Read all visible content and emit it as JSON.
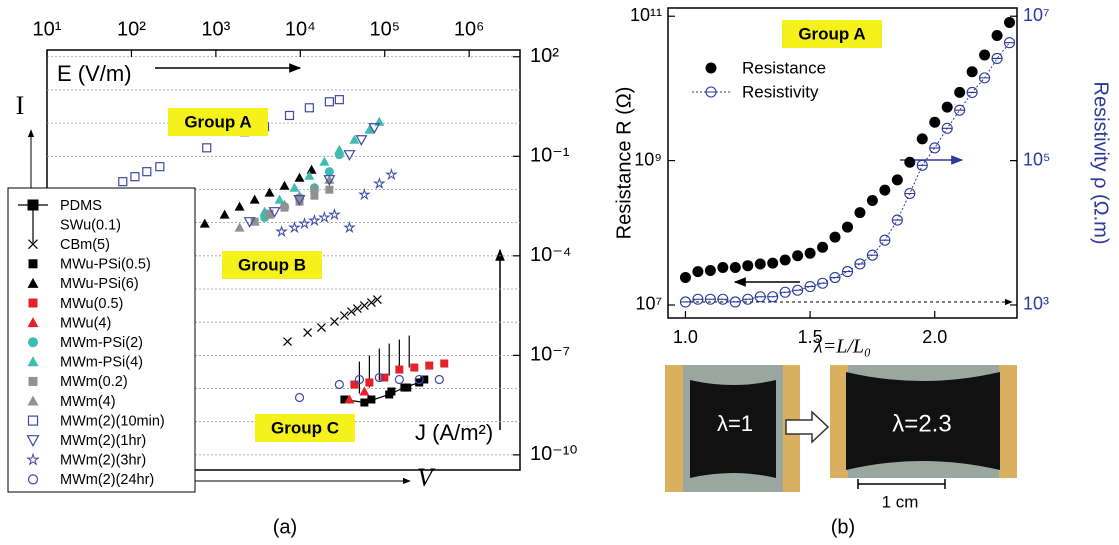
{
  "chart_data": [
    {
      "type": "scatter",
      "x_label": "E (V/m)",
      "y_label": "J (A/m²)",
      "xscale": "log",
      "yscale": "log",
      "xlim": [
        10,
        4000000
      ],
      "ylim": [
        3.5e-11,
        160
      ],
      "xticks": [
        {
          "value": 10,
          "label": "10¹"
        },
        {
          "value": 100,
          "label": "10²"
        },
        {
          "value": 1000,
          "label": "10³"
        },
        {
          "value": 10000,
          "label": "10⁴"
        },
        {
          "value": 100000,
          "label": "10⁵"
        },
        {
          "value": 1000000,
          "label": "10⁶"
        }
      ],
      "yticks": [
        {
          "value": 100,
          "label": "10²"
        },
        {
          "value": 0.1,
          "label": "10⁻¹"
        },
        {
          "value": 0.0001,
          "label": "10⁻⁴"
        },
        {
          "value": 1e-07,
          "label": "10⁻⁷"
        },
        {
          "value": 1e-10,
          "label": "10⁻¹⁰"
        }
      ],
      "ygrid": [
        100,
        10,
        1,
        0.1,
        0.01,
        0.001,
        0.0001,
        1e-05,
        1e-06,
        1e-07,
        1e-08,
        1e-09,
        1e-10
      ],
      "annotations": [
        "Group A",
        "Group B",
        "Group C",
        "I",
        "V"
      ],
      "series": [
        {
          "name": "PDMS",
          "marker": "square-line",
          "color": "#000000",
          "x": [
            33300,
            57400,
            113000,
            171000,
            256000
          ],
          "y": [
            4.67e-09,
            3.79e-09,
            6.6e-09,
            1.07e-08,
            1.52e-08
          ]
        },
        {
          "name": "SWu(0.1)",
          "marker": "vbar",
          "color": "#000000",
          "x": [
            50100,
            65800,
            86300,
            113000,
            149000,
            195000
          ],
          "y": [
            2.14e-08,
            3.25e-08,
            5.28e-08,
            7.46e-08,
            9.86e-08,
            1.3e-07
          ]
        },
        {
          "name": "CBm(5)",
          "marker": "cross",
          "color": "#000000",
          "x": [
            7060,
            12200,
            17800,
            25400,
            33300,
            40300,
            47400,
            57400,
            69500,
            81800
          ],
          "y": [
            2.61e-07,
            4.87e-07,
            6.87e-07,
            1.04e-06,
            1.58e-06,
            2.08e-06,
            2.57e-06,
            3.16e-06,
            3.89e-06,
            4.8e-06
          ]
        },
        {
          "name": "MWu-PSi(0.5)",
          "marker": "square",
          "color": "#000000",
          "x": [
            69500,
            120000,
            185000,
            294000
          ],
          "y": [
            4.67e-09,
            8.13e-09,
            1.07e-08,
            1.87e-08
          ]
        },
        {
          "name": "MWu-PSi(6)",
          "marker": "triangle",
          "color": "#000000",
          "x": [
            326,
            738,
            1270,
            1910,
            2880,
            4320,
            6500,
            9790,
            13600
          ],
          "y": [
            0.000353,
            0.000933,
            0.00174,
            0.00303,
            0.00493,
            0.00802,
            0.013,
            0.0226,
            0.0394
          ]
        },
        {
          "name": "MWu(0.5)",
          "marker": "square",
          "color": "#e8202a",
          "x": [
            43700,
            65800,
            98900,
            149000,
            224000,
            337000,
            507000
          ],
          "y": [
            1.32e-08,
            1.52e-08,
            2.14e-08,
            3.73e-08,
            4.29e-08,
            4.93e-08,
            5.67e-08
          ]
        },
        {
          "name": "MWu(4)",
          "marker": "triangle",
          "color": "#e8202a",
          "x": [
            38200,
            57400
          ],
          "y": [
            4.67e-09,
            8.13e-09
          ]
        },
        {
          "name": "MWm-PSi(2)",
          "marker": "circle",
          "color": "#3dbcb0",
          "x": [
            3780,
            6500,
            9790,
            14700,
            22100,
            29000
          ],
          "y": [
            0.00142,
            0.00303,
            0.00566,
            0.0113,
            0.0344,
            0.112
          ]
        },
        {
          "name": "MWm-PSi(4)",
          "marker": "triangle",
          "color": "#3dbcb0",
          "x": [
            3780,
            5680,
            8530,
            12800,
            19300,
            29000,
            43700,
            65800,
            86300
          ],
          "y": [
            0.00214,
            0.00493,
            0.0113,
            0.026,
            0.0688,
            0.158,
            0.316,
            0.632,
            1.1
          ]
        },
        {
          "name": "MWm(0.2)",
          "marker": "square",
          "color": "#909090",
          "x": [
            2880,
            4320,
            6500,
            9790,
            14700,
            22100
          ],
          "y": [
            0.00107,
            0.00187,
            0.00283,
            0.0043,
            0.0065,
            0.00986
          ]
        },
        {
          "name": "MWm(4)",
          "marker": "triangle",
          "color": "#909090",
          "x": [
            1910,
            2880,
            4320,
            6500,
            9790,
            14700,
            22100
          ],
          "y": [
            0.000707,
            0.00107,
            0.00174,
            0.00348,
            0.0065,
            0.0113,
            0.0197
          ]
        },
        {
          "name": "MWm(2)(10min)",
          "marker": "open-square",
          "color": "#3b4aa8",
          "x": [
            79,
            110,
            152,
            217,
            780,
            2190,
            3770,
            7450,
            12800,
            22100,
            29000
          ],
          "y": [
            0.0172,
            0.0243,
            0.0344,
            0.0486,
            0.18,
            0.55,
            0.78,
            1.7,
            2.9,
            4.4,
            5.1
          ]
        },
        {
          "name": "MWm(2)(1hr)",
          "marker": "open-triangle-down",
          "color": "#3b4aa8",
          "x": [
            2510,
            4950,
            9770,
            22100,
            38200,
            52900,
            75300
          ],
          "y": [
            0.00107,
            0.00214,
            0.00493,
            0.0197,
            0.112,
            0.316,
            0.726
          ]
        },
        {
          "name": "MWm(2)(3hr)",
          "marker": "open-star",
          "color": "#3b4aa8",
          "x": [
            6000,
            8530,
            11200,
            14700,
            19300,
            25400,
            38200,
            57400,
            86300,
            120000
          ],
          "y": [
            0.000536,
            0.000707,
            0.000933,
            0.00115,
            0.00142,
            0.00174,
            0.000707,
            0.00697,
            0.015,
            0.0279
          ]
        },
        {
          "name": "MWm(2)(24hr)",
          "marker": "open-circle",
          "color": "#3b4aa8",
          "x": [
            9790,
            29000,
            50100,
            86300,
            149000,
            256000,
            443000
          ],
          "y": [
            5.36e-09,
            1.32e-08,
            1.87e-08,
            2.14e-08,
            1.87e-08,
            1.87e-08,
            1.87e-08
          ]
        }
      ]
    },
    {
      "type": "dual-log",
      "x_label": "λ=L/L₀",
      "y_label": "Resistance R (Ω)",
      "y2_label": "Resistivity ρ (Ω.m)",
      "yscale": "log",
      "y2scale": "log",
      "xlim": [
        0.93,
        2.33
      ],
      "ylim": [
        6600000,
        130000000000
      ],
      "y2lim": [
        660,
        13000000
      ],
      "xticks": [
        {
          "value": 1,
          "label": "1.0"
        },
        1.5,
        {
          "value": 2,
          "label": "2.0"
        }
      ],
      "yticks": [
        {
          "value": 10000000,
          "label": "10⁷"
        },
        {
          "value": 1000000000,
          "label": "10⁹"
        },
        {
          "value": 100000000000,
          "label": "10¹¹"
        }
      ],
      "y2ticks": [
        {
          "value": 1000,
          "label": "10³"
        },
        {
          "value": 100000,
          "label": "10⁵"
        },
        {
          "value": 10000000,
          "label": "10⁷"
        }
      ],
      "annotations": [
        "Group A"
      ],
      "image_labels": [
        "λ=1",
        "λ=2.3",
        "1 cm"
      ],
      "x": [
        1,
        1.05,
        1.1,
        1.15,
        1.2,
        1.25,
        1.3,
        1.35,
        1.4,
        1.45,
        1.5,
        1.55,
        1.6,
        1.65,
        1.7,
        1.75,
        1.8,
        1.85,
        1.9,
        1.95,
        2,
        2.05,
        2.1,
        2.15,
        2.2,
        2.25,
        2.3
      ],
      "series": [
        {
          "name": "Resistance",
          "marker": "circle",
          "color": "#000000",
          "axis": "y",
          "values": [
            24000000,
            29000000,
            30000000,
            33000000,
            33000000,
            35000000,
            37000000,
            38000000,
            42000000,
            48000000,
            52000000,
            63000000,
            87000000,
            120000000,
            190000000,
            280000000,
            390000000,
            540000000,
            950000000,
            2000000000,
            3400000000,
            5500000000,
            8800000000,
            17000000000,
            29000000000,
            54000000000,
            82000000000
          ]
        },
        {
          "name": "Resistivity",
          "marker": "open-circle-bar",
          "line": "dotted",
          "color": "#2b3a9a",
          "axis": "y2",
          "values": [
            1100,
            1200,
            1200,
            1200,
            1100,
            1200,
            1300,
            1300,
            1500,
            1600,
            1800,
            2000,
            2400,
            2900,
            3700,
            4900,
            7900,
            15000,
            35000,
            86000,
            150000,
            280000,
            500000,
            880000,
            1400000,
            2600000,
            4300000
          ]
        }
      ]
    }
  ],
  "figure": {
    "captions": [
      "(a)",
      "(b)"
    ]
  }
}
